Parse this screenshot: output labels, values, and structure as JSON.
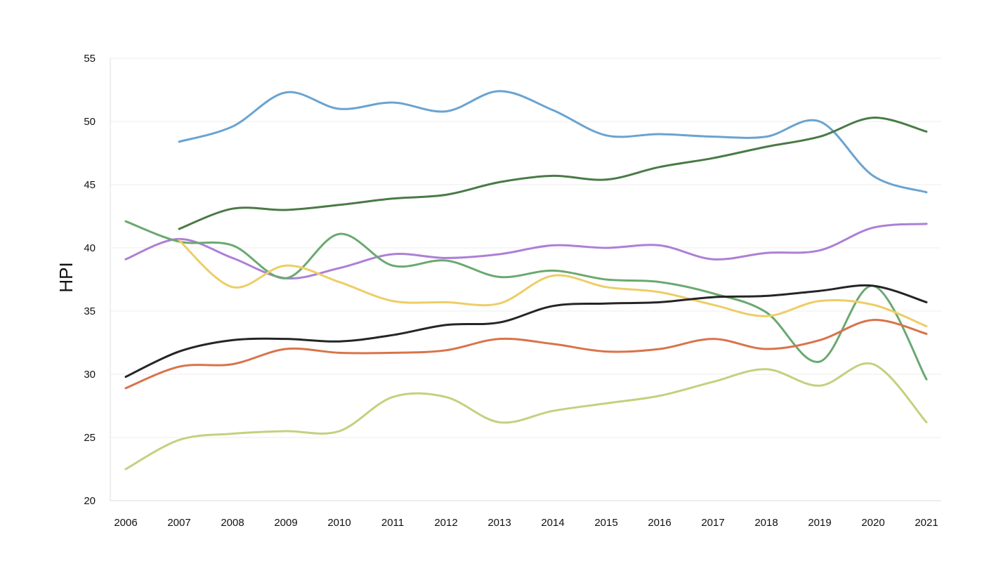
{
  "chart_data": {
    "type": "line",
    "title": "",
    "xlabel": "",
    "ylabel": "HPI",
    "x": [
      "2006",
      "2007",
      "2008",
      "2009",
      "2010",
      "2011",
      "2012",
      "2013",
      "2014",
      "2015",
      "2016",
      "2017",
      "2018",
      "2019",
      "2020",
      "2021"
    ],
    "ylim": [
      20,
      55
    ],
    "yticks": [
      20,
      25,
      30,
      35,
      40,
      45,
      50,
      55
    ],
    "grid": "horizontal",
    "legend": "none",
    "series": [
      {
        "color": "#6aa3d0",
        "values": [
          null,
          48.4,
          49.6,
          52.3,
          51.0,
          51.5,
          50.8,
          52.4,
          50.9,
          48.9,
          49.0,
          48.8,
          48.8,
          50.0,
          45.7,
          44.4
        ]
      },
      {
        "color": "#4a7a45",
        "values": [
          null,
          41.5,
          43.1,
          43.0,
          43.4,
          43.9,
          44.2,
          45.2,
          45.7,
          45.4,
          46.4,
          47.1,
          48.0,
          48.8,
          50.3,
          49.2
        ]
      },
      {
        "color": "#ad7fd6",
        "values": [
          39.1,
          40.7,
          39.2,
          37.6,
          38.4,
          39.5,
          39.2,
          39.5,
          40.2,
          40.0,
          40.2,
          39.1,
          39.6,
          39.8,
          41.6,
          41.9
        ]
      },
      {
        "color": "#6aa970",
        "values": [
          42.1,
          40.5,
          40.2,
          37.6,
          41.1,
          38.6,
          39.0,
          37.7,
          38.2,
          37.5,
          37.3,
          36.4,
          34.9,
          31.0,
          37.0,
          29.6
        ]
      },
      {
        "color": "#eecd66",
        "values": [
          null,
          40.6,
          36.9,
          38.6,
          37.3,
          35.8,
          35.7,
          35.6,
          37.8,
          36.9,
          36.5,
          35.5,
          34.6,
          35.8,
          35.5,
          33.8
        ]
      },
      {
        "color": "#252525",
        "values": [
          29.8,
          31.8,
          32.7,
          32.8,
          32.6,
          33.1,
          33.9,
          34.1,
          35.4,
          35.6,
          35.7,
          36.1,
          36.2,
          36.6,
          37.0,
          35.7
        ]
      },
      {
        "color": "#d9734a",
        "values": [
          28.9,
          30.6,
          30.8,
          32.0,
          31.7,
          31.7,
          31.9,
          32.8,
          32.4,
          31.8,
          32.0,
          32.8,
          32.0,
          32.7,
          34.3,
          33.2
        ]
      },
      {
        "color": "#c5d07e",
        "values": [
          22.5,
          24.8,
          25.3,
          25.5,
          25.5,
          28.2,
          28.2,
          26.2,
          27.1,
          27.7,
          28.3,
          29.4,
          30.4,
          29.1,
          30.8,
          26.2
        ]
      }
    ]
  }
}
